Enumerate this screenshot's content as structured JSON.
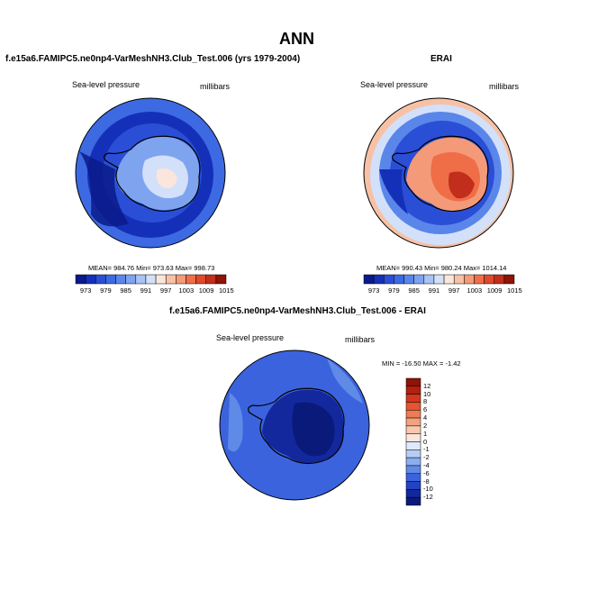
{
  "figure": {
    "title": "ANN",
    "colors": {
      "c_973": "#0a1a8a",
      "c_976": "#1530b8",
      "c_979": "#2a4fd6",
      "c_982": "#3d6ae2",
      "c_985": "#5a86ea",
      "c_988": "#7ea3ef",
      "c_991": "#a9c3f5",
      "c_994": "#d3e0fa",
      "c_997": "#fbe6dc",
      "c_1000": "#f7c1a6",
      "c_1003": "#f49a78",
      "c_1006": "#ef6e48",
      "c_1009": "#e0492b",
      "c_1012": "#c22e1c",
      "c_1015": "#8e1308",
      "coast": "#000000",
      "frame": "#000000"
    }
  },
  "panels": {
    "model": {
      "heading": "f.e15a6.FAMIPC5.ne0np4-VarMeshNH3.Club_Test.006 (yrs 1979-2004)",
      "field_label": "Sea-level pressure",
      "units": "millibars",
      "stats": "MEAN= 984.76  Min= 973.63  Max= 998.73"
    },
    "obs": {
      "heading": "ERAI",
      "field_label": "Sea-level pressure",
      "units": "millibars",
      "stats": "MEAN= 990.43  Min= 980.24  Max= 1014.14"
    },
    "diff": {
      "heading": "f.e15a6.FAMIPC5.ne0np4-VarMeshNH3.Club_Test.006 - ERAI",
      "field_label": "Sea-level pressure",
      "units": "millibars",
      "stats": "MIN = -16.50 MAX =  -1.42"
    }
  },
  "colorbar_slp": {
    "tick_labels": [
      "973",
      "979",
      "985",
      "991",
      "997",
      "1003",
      "1009",
      "1015"
    ],
    "colors": [
      "#0a1a8a",
      "#1530b8",
      "#2a4fd6",
      "#3d6ae2",
      "#5a86ea",
      "#7ea3ef",
      "#a9c3f5",
      "#d3e0fa",
      "#fbe6dc",
      "#f7c1a6",
      "#f49a78",
      "#ef6e48",
      "#e0492b",
      "#c22e1c",
      "#8e1308"
    ]
  },
  "colorbar_diff": {
    "tick_labels": [
      "12",
      "10",
      "8",
      "6",
      "4",
      "2",
      "1",
      "0",
      "-1",
      "-2",
      "-4",
      "-6",
      "-8",
      "-10",
      "-12"
    ],
    "colors": [
      "#8e1308",
      "#b51f10",
      "#d3361f",
      "#e65431",
      "#ef7a54",
      "#f5a17f",
      "#f9c7ae",
      "#fbe6dc",
      "#dfe9fb",
      "#b7cdf6",
      "#8cadf0",
      "#5f8ae8",
      "#3b63dd",
      "#2343c3",
      "#13289c",
      "#0a1a7a"
    ]
  },
  "chart_data": [
    {
      "type": "heatmap",
      "title": "f.e15a6.FAMIPC5.ne0np4-VarMeshNH3.Club_Test.006 (yrs 1979-2004)",
      "variable": "Sea-level pressure",
      "units": "millibars",
      "projection": "south polar stereographic",
      "mean": 984.76,
      "min": 973.63,
      "max": 998.73,
      "levels": [
        973,
        976,
        979,
        982,
        985,
        988,
        991,
        994,
        997,
        1000,
        1003,
        1006,
        1009,
        1012,
        1015
      ]
    },
    {
      "type": "heatmap",
      "title": "ERAI",
      "variable": "Sea-level pressure",
      "units": "millibars",
      "projection": "south polar stereographic",
      "mean": 990.43,
      "min": 980.24,
      "max": 1014.14,
      "levels": [
        973,
        976,
        979,
        982,
        985,
        988,
        991,
        994,
        997,
        1000,
        1003,
        1006,
        1009,
        1012,
        1015
      ]
    },
    {
      "type": "heatmap",
      "title": "f.e15a6.FAMIPC5.ne0np4-VarMeshNH3.Club_Test.006 - ERAI",
      "variable": "Sea-level pressure",
      "units": "millibars",
      "projection": "south polar stereographic",
      "min": -16.5,
      "max": -1.42,
      "levels": [
        -12,
        -10,
        -8,
        -6,
        -4,
        -2,
        -1,
        0,
        1,
        2,
        4,
        6,
        8,
        10,
        12
      ]
    }
  ]
}
